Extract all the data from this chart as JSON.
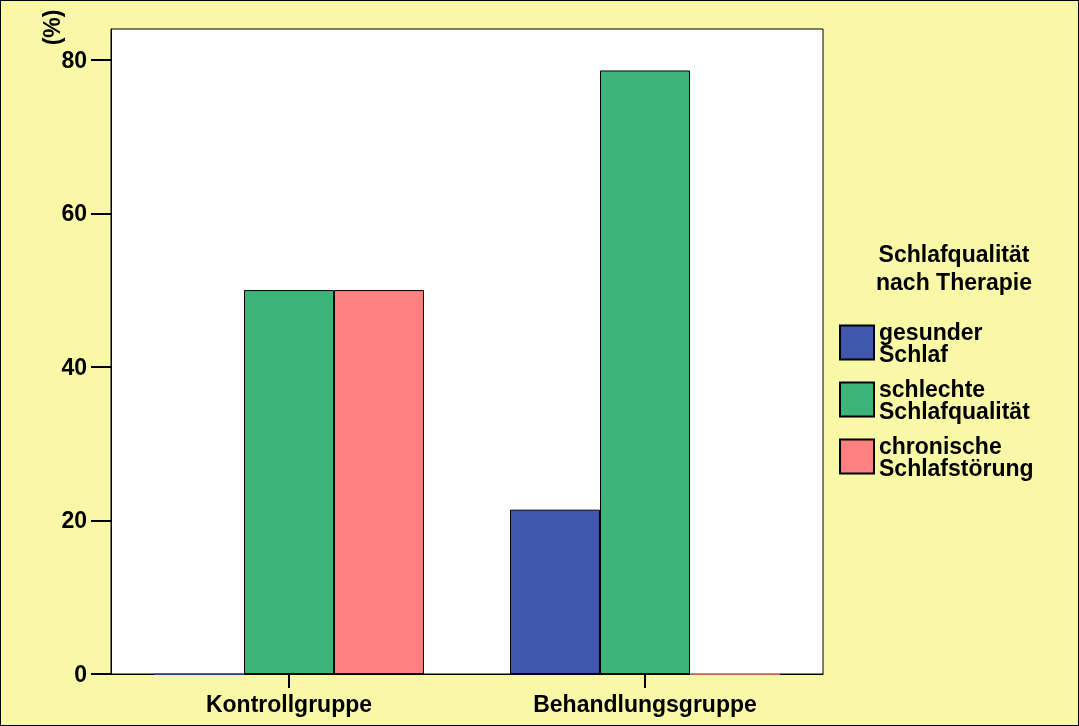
{
  "chart_data": {
    "type": "bar",
    "categories": [
      "Kontrollgruppe",
      "Behandlungsgruppe"
    ],
    "ylabel": "(%)",
    "legend_title": "Schlafqualität nach Therapie",
    "series": [
      {
        "name": "gesunder Schlaf",
        "color": "#3f58ab",
        "values": [
          0,
          21.4
        ]
      },
      {
        "name": "schlechte Schlafqualität",
        "color": "#3cb479",
        "values": [
          50,
          78.6
        ]
      },
      {
        "name": "chronische Schlafstörung",
        "color": "#ff8080",
        "values": [
          50,
          0
        ]
      }
    ],
    "ylim": [
      0,
      84
    ],
    "yticks": [
      0,
      20,
      40,
      60,
      80
    ],
    "grid": false,
    "legend": "right"
  }
}
